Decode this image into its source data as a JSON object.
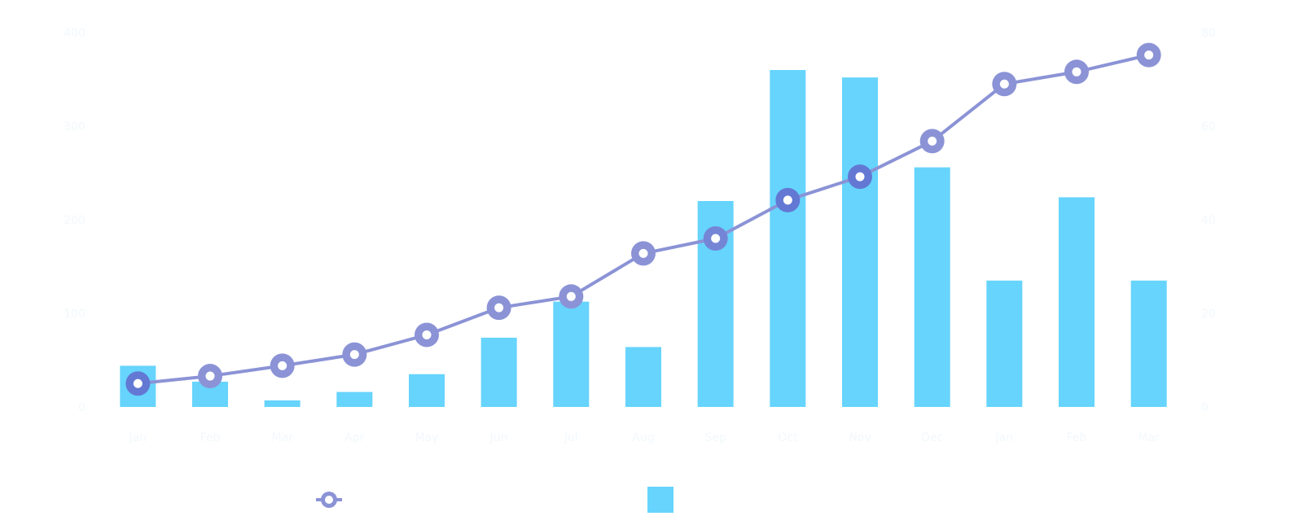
{
  "chart_data": {
    "type": "bar",
    "combo": "bar+line",
    "categories": [
      "Jan",
      "Feb",
      "Mar",
      "Apr",
      "May",
      "Jun",
      "Jul",
      "Aug",
      "Sep",
      "Oct",
      "Nov",
      "Dec",
      "Jan",
      "Feb",
      "Mar"
    ],
    "series": [
      {
        "type": "line",
        "axis": "left",
        "color": "#8b93d6",
        "values": [
          25,
          33,
          44,
          56,
          77,
          106,
          118,
          164,
          180,
          221,
          246,
          284,
          345,
          358,
          376
        ]
      },
      {
        "type": "bar",
        "axis": "right",
        "color": "#66d4fd",
        "values": [
          8.8,
          5.4,
          1.4,
          3.2,
          7.0,
          14.8,
          22.5,
          12.8,
          44.0,
          72.0,
          70.4,
          51.2,
          27.0,
          44.8,
          27.0
        ]
      }
    ],
    "left_axis": {
      "ylim": [
        0,
        400
      ],
      "ticks": [
        0,
        100,
        200,
        300,
        400
      ]
    },
    "right_axis": {
      "ylim": [
        0,
        80
      ],
      "ticks": [
        0,
        20,
        40,
        60,
        80
      ]
    },
    "grid": false,
    "legend_position": "bottom",
    "colors": {
      "line": "#8b93d6",
      "line_highlight": "#6378d3",
      "bar": "#66d4fd",
      "faint_text": "#f2f8fc"
    }
  }
}
